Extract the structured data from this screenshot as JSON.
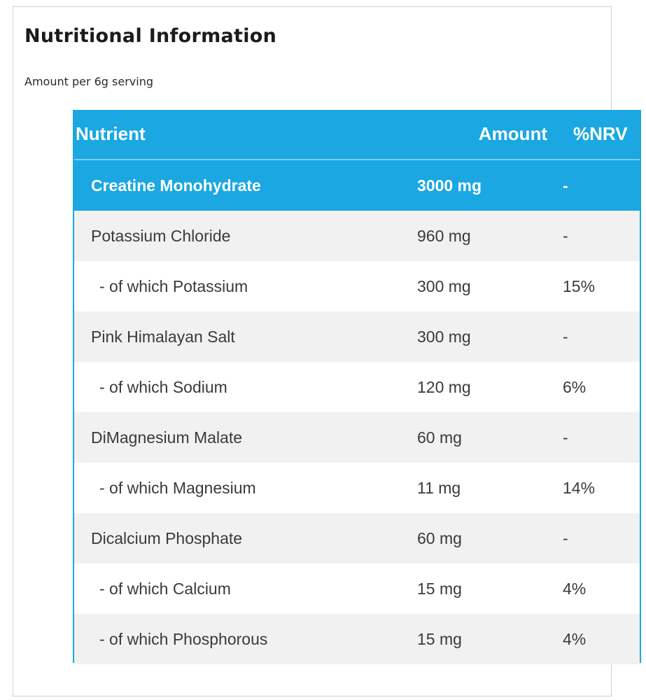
{
  "title": "Nutritional Information",
  "subtitle": "Amount per 6g serving",
  "table": {
    "headers": {
      "nutrient": "Nutrient",
      "amount": "Amount",
      "nrv": "%NRV"
    },
    "rows": [
      {
        "name": "Creatine Monohydrate",
        "amount": "3000 mg",
        "nrv": "-"
      },
      {
        "name": "Potassium Chloride",
        "amount": "960 mg",
        "nrv": "-"
      },
      {
        "name": " - of which Potassium",
        "amount": "300 mg",
        "nrv": "15%"
      },
      {
        "name": "Pink Himalayan Salt",
        "amount": "300 mg",
        "nrv": "-"
      },
      {
        "name": " - of which Sodium",
        "amount": "120 mg",
        "nrv": "6%"
      },
      {
        "name": "DiMagnesium Malate",
        "amount": "60 mg",
        "nrv": "-"
      },
      {
        "name": " - of which Magnesium",
        "amount": "11 mg",
        "nrv": "14%"
      },
      {
        "name": "Dicalcium Phosphate",
        "amount": "60 mg",
        "nrv": "-"
      },
      {
        "name": " - of which Calcium",
        "amount": "15 mg",
        "nrv": "4%"
      },
      {
        "name": " - of which Phosphorous",
        "amount": "15 mg",
        "nrv": "4%"
      }
    ]
  },
  "colors": {
    "accent": "#1aa7e2",
    "stripe": "#f1f1f1",
    "text": "#3a3a3a"
  }
}
